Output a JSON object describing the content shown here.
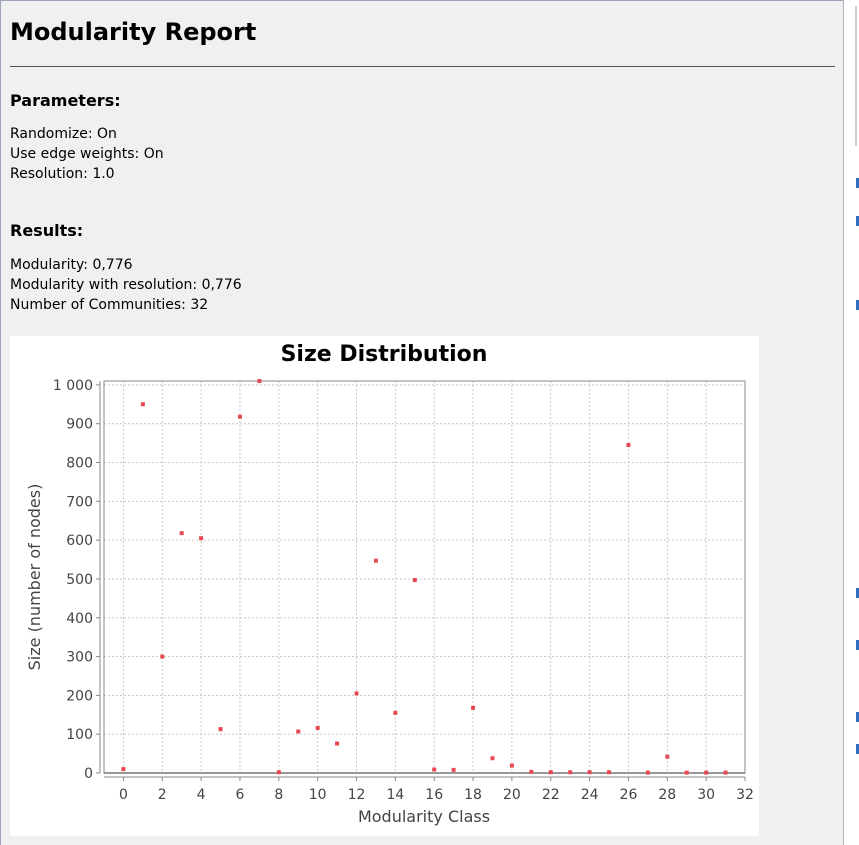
{
  "report": {
    "title": "Modularity Report",
    "parameters_heading": "Parameters:",
    "parameters": [
      "Randomize: On",
      "Use edge weights: On",
      "Resolution: 1.0"
    ],
    "results_heading": "Results:",
    "results": [
      "Modularity: 0,776",
      "Modularity with resolution: 0,776",
      "Number of Communities: 32"
    ]
  },
  "chart_data": {
    "type": "scatter",
    "title": "Size Distribution",
    "xlabel": "Modularity Class",
    "ylabel": "Size (number of nodes)",
    "xlim": [
      -1,
      32
    ],
    "ylim": [
      0,
      1010
    ],
    "xticks": [
      0,
      2,
      4,
      6,
      8,
      10,
      12,
      14,
      16,
      18,
      20,
      22,
      24,
      26,
      28,
      30,
      32
    ],
    "xtick_labels": [
      "0",
      "2",
      "4",
      "6",
      "8",
      "10",
      "12",
      "14",
      "16",
      "18",
      "20",
      "22",
      "24",
      "26",
      "28",
      "30",
      "32"
    ],
    "yticks": [
      0,
      100,
      200,
      300,
      400,
      500,
      600,
      700,
      800,
      900,
      1000
    ],
    "ytick_labels": [
      "0",
      "100",
      "200",
      "300",
      "400",
      "500",
      "600",
      "700",
      "800",
      "900",
      "1 000"
    ],
    "grid": true,
    "point_color": "#e8484f",
    "points": [
      {
        "x": 0,
        "y": 10
      },
      {
        "x": 1,
        "y": 950
      },
      {
        "x": 2,
        "y": 300
      },
      {
        "x": 3,
        "y": 618
      },
      {
        "x": 4,
        "y": 605
      },
      {
        "x": 5,
        "y": 113
      },
      {
        "x": 6,
        "y": 918
      },
      {
        "x": 7,
        "y": 1010
      },
      {
        "x": 8,
        "y": 2
      },
      {
        "x": 9,
        "y": 107
      },
      {
        "x": 10,
        "y": 116
      },
      {
        "x": 11,
        "y": 76
      },
      {
        "x": 12,
        "y": 205
      },
      {
        "x": 13,
        "y": 547
      },
      {
        "x": 14,
        "y": 155
      },
      {
        "x": 15,
        "y": 497
      },
      {
        "x": 16,
        "y": 9
      },
      {
        "x": 17,
        "y": 8
      },
      {
        "x": 18,
        "y": 168
      },
      {
        "x": 19,
        "y": 38
      },
      {
        "x": 20,
        "y": 19
      },
      {
        "x": 21,
        "y": 3
      },
      {
        "x": 22,
        "y": 2
      },
      {
        "x": 23,
        "y": 2
      },
      {
        "x": 24,
        "y": 2
      },
      {
        "x": 25,
        "y": 2
      },
      {
        "x": 26,
        "y": 845
      },
      {
        "x": 27,
        "y": 1
      },
      {
        "x": 28,
        "y": 42
      },
      {
        "x": 29,
        "y": 1
      },
      {
        "x": 30,
        "y": 1
      },
      {
        "x": 31,
        "y": 1
      }
    ]
  }
}
